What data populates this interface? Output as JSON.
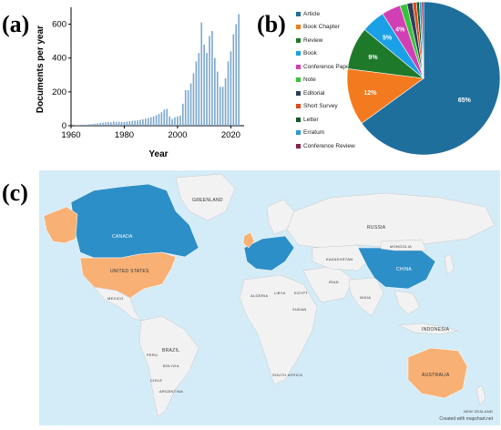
{
  "panels": {
    "a": "(a)",
    "b": "(b)",
    "c": "(c)"
  },
  "chart_data": [
    {
      "type": "bar",
      "panel": "(a)",
      "xlabel": "Year",
      "ylabel": "Documents per year",
      "xlim": [
        1960,
        2025
      ],
      "ylim": [
        0,
        700
      ],
      "xticks": [
        1960,
        1980,
        2000,
        2020
      ],
      "yticks": [
        0,
        200,
        400,
        600
      ],
      "color": "#7ba7cf",
      "x": [
        1962,
        1963,
        1964,
        1965,
        1966,
        1967,
        1968,
        1969,
        1970,
        1971,
        1972,
        1973,
        1974,
        1975,
        1976,
        1977,
        1978,
        1979,
        1980,
        1981,
        1982,
        1983,
        1984,
        1985,
        1986,
        1987,
        1988,
        1989,
        1990,
        1991,
        1992,
        1993,
        1994,
        1995,
        1996,
        1997,
        1998,
        1999,
        2000,
        2001,
        2002,
        2003,
        2004,
        2005,
        2006,
        2007,
        2008,
        2009,
        2010,
        2011,
        2012,
        2013,
        2014,
        2015,
        2016,
        2017,
        2018,
        2019,
        2020,
        2021,
        2022,
        2023
      ],
      "values": [
        3,
        4,
        5,
        6,
        6,
        8,
        10,
        12,
        14,
        16,
        18,
        20,
        22,
        20,
        25,
        22,
        24,
        22,
        22,
        25,
        26,
        28,
        30,
        32,
        35,
        38,
        42,
        45,
        50,
        55,
        62,
        70,
        80,
        95,
        100,
        55,
        40,
        50,
        55,
        60,
        130,
        210,
        210,
        250,
        310,
        380,
        430,
        610,
        480,
        430,
        530,
        560,
        400,
        320,
        230,
        230,
        280,
        380,
        440,
        540,
        600,
        660
      ]
    },
    {
      "type": "pie",
      "panel": "(b)",
      "categories": [
        "Article",
        "Book Chapter",
        "Review",
        "Book",
        "Conference Paper",
        "Note",
        "Editorial",
        "Short Survey",
        "Letter",
        "Erratum",
        "Conference Review"
      ],
      "values": [
        65,
        12,
        9,
        5,
        4,
        1.5,
        1.2,
        0.8,
        0.6,
        0.5,
        0.4
      ],
      "labels": [
        "65%",
        "12%",
        "9%",
        "5%",
        "4%",
        "",
        "",
        "",
        "",
        "",
        ""
      ],
      "colors": [
        "#1f6f9c",
        "#f47a1f",
        "#1e7a2a",
        "#1aa0e6",
        "#d13fb4",
        "#38c43a",
        "#2b3e5c",
        "#e04a16",
        "#0f5a24",
        "#2a9ad6",
        "#8e1f4d"
      ],
      "legend_position": "left"
    }
  ],
  "map": {
    "highlight_blue": "#2d8fc8",
    "highlight_orange": "#f8b074",
    "land_color": "#f2f2f2",
    "ocean_color": "#d4ecf8",
    "labels": [
      {
        "text": "GREENLAND",
        "name": "label-greenland"
      },
      {
        "text": "CANADA",
        "name": "label-canada"
      },
      {
        "text": "UNITED STATES",
        "name": "label-united-states"
      },
      {
        "text": "RUSSIA",
        "name": "label-russia"
      },
      {
        "text": "CHINA",
        "name": "label-china"
      },
      {
        "text": "BRAZIL",
        "name": "label-brazil"
      },
      {
        "text": "INDONESIA",
        "name": "label-indonesia"
      },
      {
        "text": "AUSTRALIA",
        "name": "label-australia"
      },
      {
        "text": "MONGOLIA",
        "name": "label-mongolia"
      },
      {
        "text": "KAZAKHSTAN",
        "name": "label-kazakhstan"
      },
      {
        "text": "INDIA",
        "name": "label-india"
      },
      {
        "text": "IRAN",
        "name": "label-iran"
      },
      {
        "text": "ALGERIA",
        "name": "label-algeria"
      },
      {
        "text": "LIBYA",
        "name": "label-libya"
      },
      {
        "text": "EGYPT",
        "name": "label-egypt"
      },
      {
        "text": "SUDAN",
        "name": "label-sudan"
      },
      {
        "text": "MEXICO",
        "name": "label-mexico"
      },
      {
        "text": "PERU",
        "name": "label-peru"
      },
      {
        "text": "BOLIVIA",
        "name": "label-bolivia"
      },
      {
        "text": "ARGENTINA",
        "name": "label-argentina"
      },
      {
        "text": "CHILE",
        "name": "label-chile"
      },
      {
        "text": "SOUTH AFRICA",
        "name": "label-south-africa"
      },
      {
        "text": "NEW ZEALAND",
        "name": "label-new-zealand"
      }
    ],
    "credit": "Created with mapchart.net"
  }
}
